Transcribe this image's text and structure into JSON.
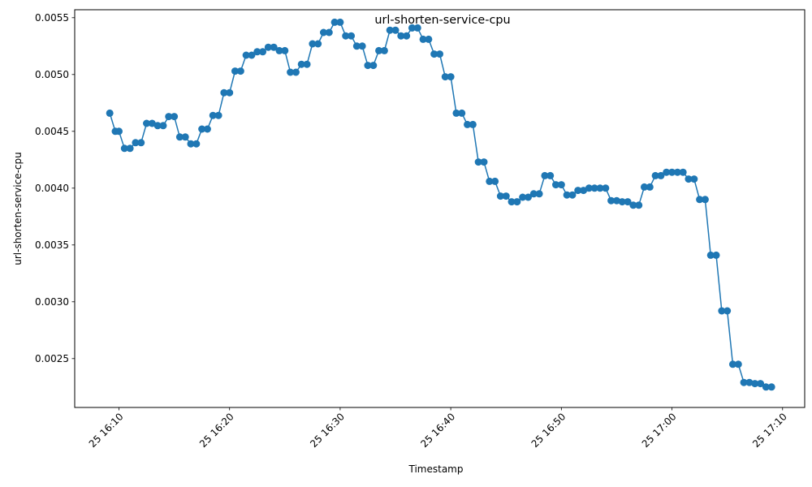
{
  "chart_data": {
    "type": "line",
    "title": "url-shorten-service-cpu",
    "xlabel": "Timestamp",
    "ylabel": "url-shorten-service-cpu",
    "marker": "circle",
    "grid": false,
    "colors": {
      "series": "#1f77b4"
    },
    "x_ticks": [
      "25 16:10",
      "25 16:20",
      "25 16:30",
      "25 16:40",
      "25 16:50",
      "25 17:00",
      "25 17:10"
    ],
    "x_tick_minutes": [
      10,
      20,
      30,
      40,
      50,
      60,
      70
    ],
    "xlim_minutes_after_16_00": [
      6.0,
      72.0
    ],
    "y_ticks": [
      "0.0025",
      "0.0030",
      "0.0035",
      "0.0040",
      "0.0045",
      "0.0050",
      "0.0055"
    ],
    "ylim": [
      0.00207,
      0.00557
    ],
    "series": [
      {
        "x_minutes_after_16_00": [
          9.17,
          9.67,
          10.0,
          10.5,
          11.0,
          11.5,
          12.0,
          12.5,
          13.0,
          13.5,
          14.0,
          14.5,
          15.0,
          15.5,
          16.0,
          16.5,
          17.0,
          17.5,
          18.0,
          18.5,
          19.0,
          19.5,
          20.0,
          20.5,
          21.0,
          21.5,
          22.0,
          22.5,
          23.0,
          23.5,
          24.0,
          24.5,
          25.0,
          25.5,
          26.0,
          26.5,
          27.0,
          27.5,
          28.0,
          28.5,
          29.0,
          29.5,
          30.0,
          30.5,
          31.0,
          31.5,
          32.0,
          32.5,
          33.0,
          33.5,
          34.0,
          34.5,
          35.0,
          35.5,
          36.0,
          36.5,
          37.0,
          37.5,
          38.0,
          38.5,
          39.0,
          39.5,
          40.0,
          40.5,
          41.0,
          41.5,
          42.0,
          42.5,
          43.0,
          43.5,
          44.0,
          44.5,
          45.0,
          45.5,
          46.0,
          46.5,
          47.0,
          47.5,
          48.0,
          48.5,
          49.0,
          49.5,
          50.0,
          50.5,
          51.0,
          51.5,
          52.0,
          52.5,
          53.0,
          53.5,
          54.0,
          54.5,
          55.0,
          55.5,
          56.0,
          56.5,
          57.0,
          57.5,
          58.0,
          58.5,
          59.0,
          59.5,
          60.0,
          60.5,
          61.0,
          61.5,
          62.0,
          62.5,
          63.0,
          63.5,
          64.0,
          64.5,
          65.0,
          65.5,
          66.0,
          66.5,
          67.0,
          67.5,
          68.0,
          68.5,
          69.0,
          69.5
        ],
        "values": [
          0.00466,
          0.0045,
          0.0045,
          0.00435,
          0.00435,
          0.0044,
          0.0044,
          0.00457,
          0.00457,
          0.00455,
          0.00455,
          0.00463,
          0.00463,
          0.00445,
          0.00445,
          0.00439,
          0.00439,
          0.00452,
          0.00452,
          0.00464,
          0.00464,
          0.00484,
          0.00484,
          0.00503,
          0.00503,
          0.00517,
          0.00517,
          0.0052,
          0.0052,
          0.00524,
          0.00524,
          0.00521,
          0.00521,
          0.00502,
          0.00502,
          0.00509,
          0.00509,
          0.00527,
          0.00527,
          0.00537,
          0.00537,
          0.00546,
          0.00546,
          0.00534,
          0.00534,
          0.00525,
          0.00525,
          0.00508,
          0.00508,
          0.00521,
          0.00521,
          0.00539,
          0.00539,
          0.00534,
          0.00534,
          0.00541,
          0.00541,
          0.00531,
          0.00531,
          0.00518,
          0.00518,
          0.00498,
          0.00498,
          0.00466,
          0.00466,
          0.00456,
          0.00456,
          0.00423,
          0.00423,
          0.00406,
          0.00406,
          0.00393,
          0.00393,
          0.00388,
          0.00388,
          0.00392,
          0.00392,
          0.00395,
          0.00395,
          0.00411,
          0.00411,
          0.00403,
          0.00403,
          0.00394,
          0.00394,
          0.00398,
          0.00398,
          0.004,
          0.004,
          0.004,
          0.004,
          0.00389,
          0.00389,
          0.00388,
          0.00388,
          0.00385,
          0.00385,
          0.00401,
          0.00401,
          0.00411,
          0.00411,
          0.00414,
          0.00414,
          0.00414,
          0.00414,
          0.00408,
          0.00408,
          0.0039,
          0.0039,
          0.00341,
          0.00341,
          0.00292,
          0.00292,
          0.00245,
          0.00245,
          0.00229,
          0.00229,
          0.00228,
          0.00228,
          0.00225,
          0.00225
        ]
      }
    ]
  }
}
